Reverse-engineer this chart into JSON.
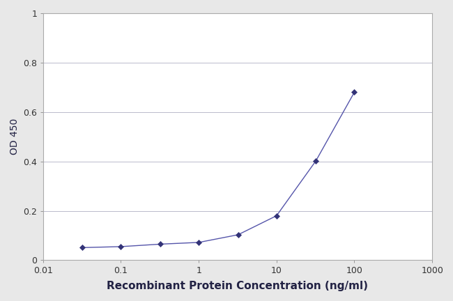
{
  "x_values": [
    0.032,
    0.1,
    0.32,
    1.0,
    3.2,
    10.0,
    32.0,
    100.0
  ],
  "y_values": [
    0.051,
    0.055,
    0.065,
    0.072,
    0.103,
    0.18,
    0.402,
    0.68
  ],
  "xlabel": "Recombinant Protein Concentration (ng/ml)",
  "ylabel": "OD 450",
  "xlim": [
    0.01,
    1000
  ],
  "ylim": [
    0,
    1.0
  ],
  "yticks": [
    0,
    0.2,
    0.4,
    0.6,
    0.8,
    1.0
  ],
  "xticks": [
    0.01,
    0.1,
    1,
    10,
    100,
    1000
  ],
  "xtick_labels": [
    "0.01",
    "0.1",
    "1",
    "10",
    "100",
    "1000"
  ],
  "line_color": "#5555aa",
  "marker_color": "#333377",
  "marker": "D",
  "marker_size": 4,
  "line_width": 1.0,
  "figure_bg_color": "#e8e8e8",
  "plot_bg_color": "#ffffff",
  "grid_color": "#bbbbcc",
  "label_fontsize": 10,
  "tick_fontsize": 9,
  "xlabel_fontsize": 11
}
